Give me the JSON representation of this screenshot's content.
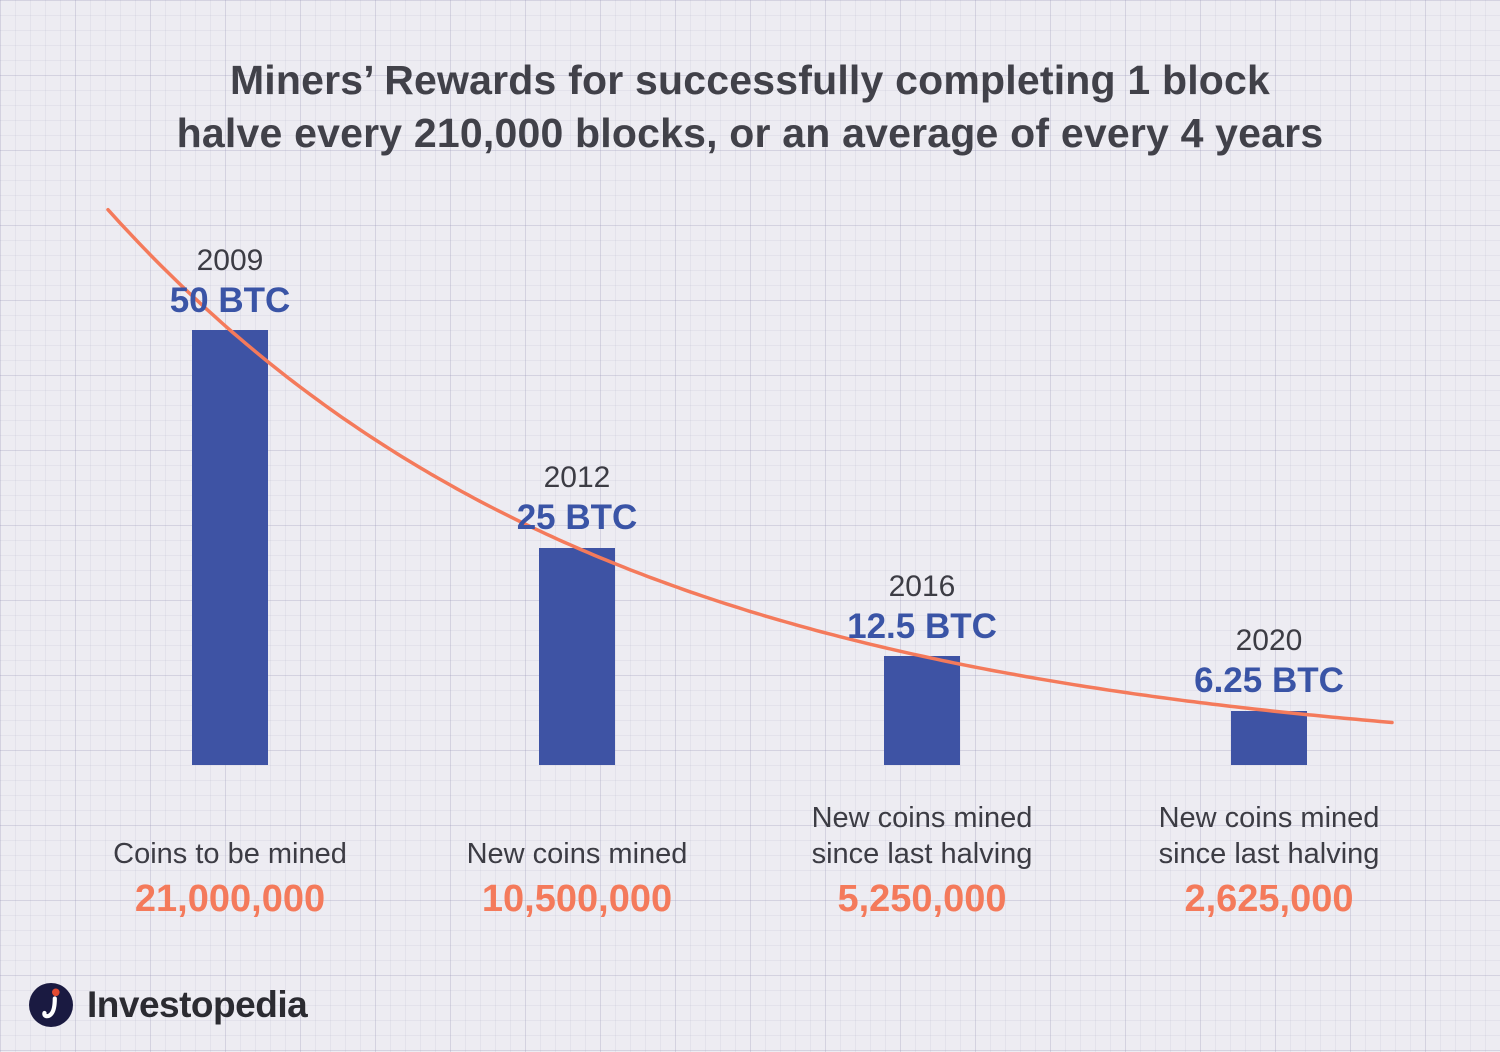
{
  "title": {
    "line1": "Miners’ Rewards for successfully completing 1 block",
    "line2": "halve every 210,000 blocks, or an average of every 4 years"
  },
  "chart_data": {
    "type": "bar",
    "title": "Miners’ Rewards for successfully completing 1 block halve every 210,000 blocks, or an average of every 4 years",
    "categories": [
      "2009",
      "2012",
      "2016",
      "2020"
    ],
    "values": [
      50,
      25,
      12.5,
      6.25
    ],
    "value_labels": [
      "50 BTC",
      "25 BTC",
      "12.5 BTC",
      "6.25 BTC"
    ],
    "caption_lines": [
      [
        "Coins to be mined"
      ],
      [
        "New coins mined"
      ],
      [
        "New coins mined",
        "since last halving"
      ],
      [
        "New coins mined",
        "since last halving"
      ]
    ],
    "totals": [
      "21,000,000",
      "10,500,000",
      "5,250,000",
      "2,625,000"
    ],
    "xlabel": "",
    "ylabel": "",
    "ylim": [
      0,
      50
    ],
    "grid": "faint graph-paper background",
    "legend": "none",
    "trend_line": "exponential decay curve, reward halving every 4 years",
    "colors": {
      "bar": "#3e53a4",
      "trend": "#f47a5b",
      "value_label": "#3a54a6",
      "total": "#f47a5b",
      "text": "#3c3c44",
      "background": "#edecf2"
    }
  },
  "logo": {
    "text": "Investopedia"
  }
}
